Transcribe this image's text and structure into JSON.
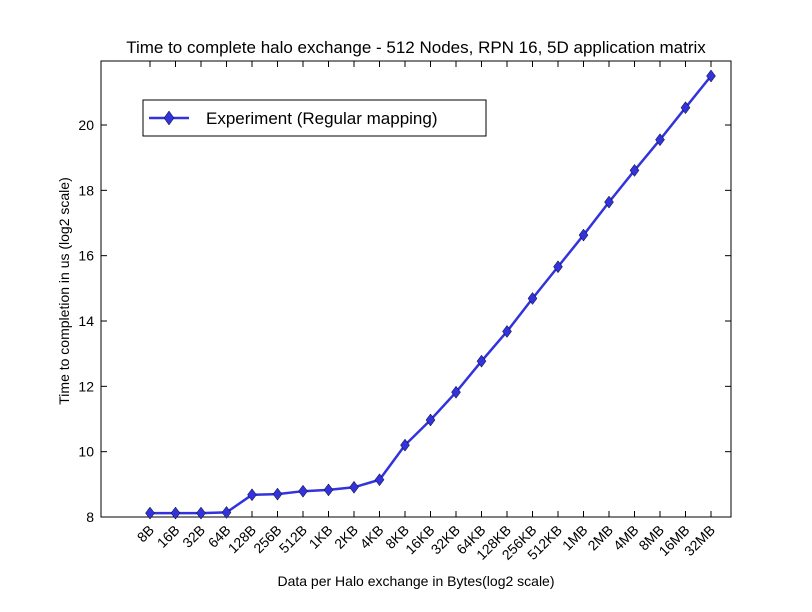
{
  "chart_data": {
    "type": "line",
    "title": "Time to complete halo exchange - 512 Nodes, RPN 16, 5D application matrix",
    "xlabel": "Data per Halo exchange in Bytes(log2 scale)",
    "ylabel": "Time to completion in us (log2 scale)",
    "categories": [
      "8B",
      "16B",
      "32B",
      "64B",
      "128B",
      "256B",
      "512B",
      "1KB",
      "2KB",
      "4KB",
      "8KB",
      "16KB",
      "32KB",
      "64KB",
      "128KB",
      "256KB",
      "512KB",
      "1MB",
      "2MB",
      "4MB",
      "8MB",
      "16MB",
      "32MB"
    ],
    "series": [
      {
        "name": "Experiment (Regular mapping)",
        "values": [
          8.12,
          8.12,
          8.12,
          8.14,
          8.68,
          8.7,
          8.79,
          8.83,
          8.91,
          9.14,
          10.2,
          10.97,
          11.82,
          12.77,
          13.68,
          14.69,
          15.66,
          16.63,
          17.64,
          18.61,
          19.55,
          20.53,
          21.5
        ],
        "color": "#3333dd",
        "marker": "diamond"
      }
    ],
    "ylim": [
      8,
      22
    ],
    "yticks": [
      8,
      10,
      12,
      14,
      16,
      18,
      20
    ],
    "grid": false,
    "legend_position": "upper-left"
  }
}
